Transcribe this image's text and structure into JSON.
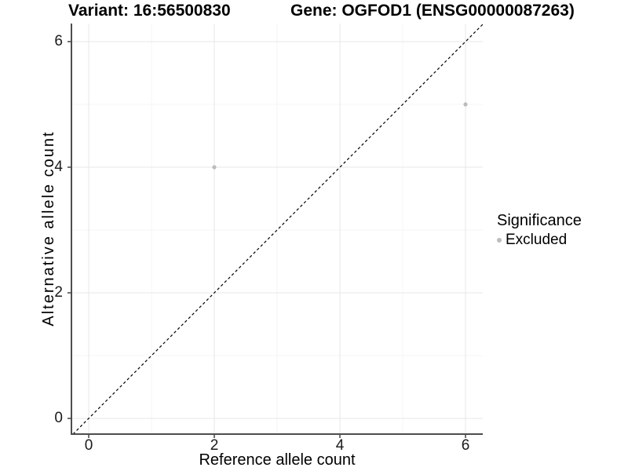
{
  "header": {
    "variant_title": "Variant: 16:56500830",
    "gene_title": "Gene: OGFOD1 (ENSG00000087263)"
  },
  "chart_data": {
    "type": "scatter",
    "title_left": "Variant: 16:56500830",
    "title_right": "Gene: OGFOD1 (ENSG00000087263)",
    "xlabel": "Reference allele count",
    "ylabel": "Alternative allele count",
    "xlim": [
      -0.27,
      6.3
    ],
    "ylim": [
      -0.27,
      6.3
    ],
    "x_ticks": [
      0,
      2,
      4,
      6
    ],
    "y_ticks": [
      0,
      2,
      4,
      6
    ],
    "x_minor_ticks": [
      1,
      3,
      5
    ],
    "y_minor_ticks": [
      1,
      3,
      5
    ],
    "grid": true,
    "series": [
      {
        "name": "Excluded",
        "color": "#bcbcbc",
        "points": [
          {
            "x": 2,
            "y": 4
          },
          {
            "x": 6,
            "y": 5
          }
        ]
      }
    ],
    "reference_line": {
      "type": "identity",
      "equation": "y = x",
      "style": "dashed",
      "color": "#000000"
    },
    "legend": {
      "title": "Significance",
      "position": "right",
      "entries": [
        {
          "label": "Excluded",
          "color": "#bcbcbc",
          "marker": "circle"
        }
      ]
    },
    "style_colors": {
      "axis_line": "#4d4d4d",
      "major_grid": "#e7e7e7",
      "minor_grid": "#f4f4f4",
      "tick_text": "#1a1a1a"
    }
  }
}
